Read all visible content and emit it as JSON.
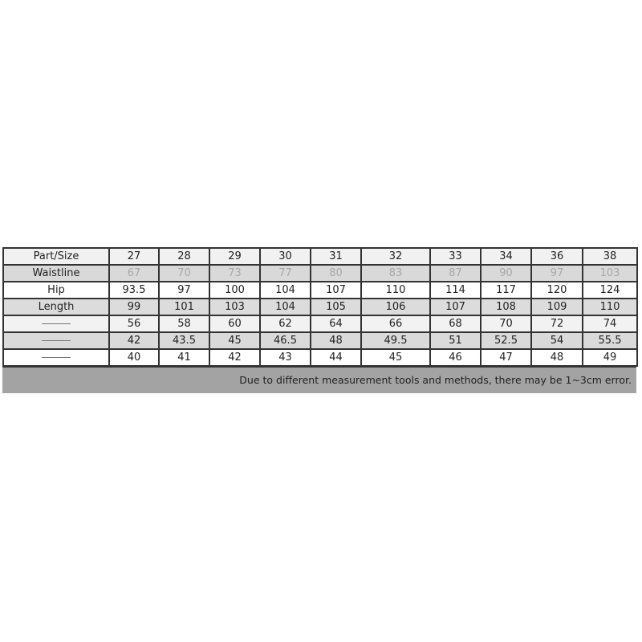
{
  "table": {
    "header": [
      "Part/Size",
      "27",
      "28",
      "29",
      "30",
      "31",
      "32",
      "33",
      "34",
      "36",
      "38"
    ],
    "rows": [
      {
        "label": "Waistline",
        "cells": [
          "67",
          "70",
          "73",
          "77",
          "80",
          "83",
          "87",
          "90",
          "97",
          "103"
        ]
      },
      {
        "label": "Hip",
        "cells": [
          "93.5",
          "97",
          "100",
          "104",
          "107",
          "110",
          "114",
          "117",
          "120",
          "124"
        ]
      },
      {
        "label": "Length",
        "cells": [
          "99",
          "101",
          "103",
          "104",
          "105",
          "106",
          "107",
          "108",
          "109",
          "110"
        ]
      },
      {
        "cells": [
          "56",
          "58",
          "60",
          "62",
          "64",
          "66",
          "68",
          "70",
          "72",
          "74"
        ]
      },
      {
        "cells": [
          "42",
          "43.5",
          "45",
          "46.5",
          "48",
          "49.5",
          "51",
          "52.5",
          "54",
          "55.5"
        ]
      },
      {
        "cells": [
          "40",
          "41",
          "42",
          "43",
          "44",
          "45",
          "46",
          "47",
          "48",
          "49"
        ]
      }
    ],
    "note": "Due to different measurement tools and methods, there may be 1~3cm error."
  }
}
